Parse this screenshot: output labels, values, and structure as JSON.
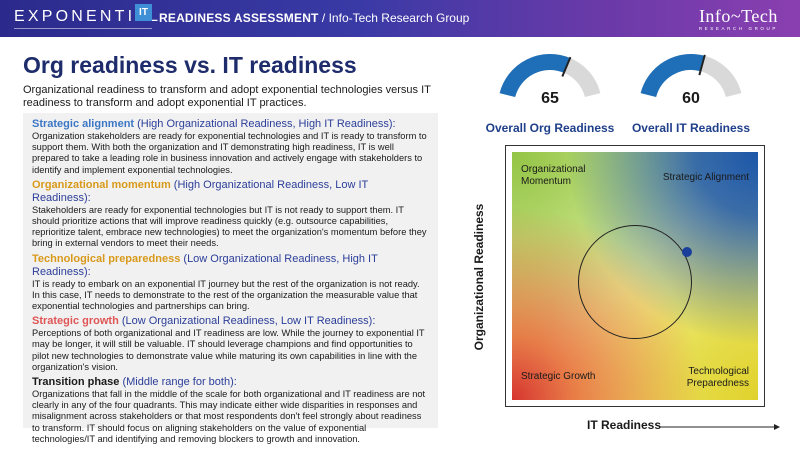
{
  "header": {
    "brand": "EXPONENTIAL",
    "brand_box": "IT",
    "title_bold": "READINESS ASSESSMENT",
    "title_rest": " / Info-Tech Research Group",
    "logo_main": "Info~Tech",
    "logo_sub": "RESEARCH GROUP"
  },
  "page": {
    "title": "Org readiness vs. IT readiness",
    "subtitle": "Organizational readiness to transform and adopt exponential technologies versus IT readiness to transform and adopt exponential IT practices."
  },
  "sections": [
    {
      "heading": "Strategic alignment",
      "paren": " (High Organizational Readiness, High IT Readiness):",
      "body": "Organization stakeholders are ready for exponential technologies and IT is ready to transform to support them. With both the organization and IT demonstrating high readiness, IT is well prepared to take a leading role in business innovation and actively engage with stakeholders to identify and implement exponential technologies."
    },
    {
      "heading": "Organizational momentum",
      "paren": " (High Organizational Readiness, Low IT Readiness):",
      "body": "Stakeholders are ready for exponential technologies but IT is not ready to support them. IT should prioritize actions that will improve readiness quickly (e.g. outsource capabilities, reprioritize talent, embrace new technologies) to meet the organization's momentum before they bring in external vendors to meet their needs."
    },
    {
      "heading": "Technological preparedness",
      "paren": " (Low Organizational Readiness, High IT Readiness):",
      "body": "IT is ready to embark on an exponential IT journey but the rest of the organization is not ready. In this case, IT needs to demonstrate to the rest of the organization the measurable value that exponential technologies and partnerships can bring."
    },
    {
      "heading": "Strategic growth",
      "paren": " (Low Organizational Readiness, Low IT Readiness):",
      "body": "Perceptions of both organizational and IT readiness are low. While the journey to exponential IT may be longer, it will still be valuable. IT should leverage champions and find opportunities to pilot new technologies to demonstrate value while maturing its own capabilities in line with the organization's vision."
    },
    {
      "heading": "Transition phase",
      "paren": " (Middle range for both):",
      "body": "Organizations that fall in the middle of the scale for both organizational and IT readiness are not clearly in any of the four quadrants. This may indicate either wide disparities in responses and misalignment across stakeholders or that most respondents don't feel strongly about readiness to transform. IT should focus on aligning stakeholders on the value of exponential technologies/IT and identifying and removing blockers to growth and innovation."
    }
  ],
  "gauges": [
    {
      "value": "65",
      "fraction": 0.65,
      "label": "Overall Org Readiness"
    },
    {
      "value": "60",
      "fraction": 0.6,
      "label": "Overall IT Readiness"
    }
  ],
  "quadrant": {
    "y_label": "Organizational Readiness",
    "x_label": "IT Readiness",
    "top_left": [
      "Organizational",
      "Momentum"
    ],
    "top_right": "Strategic Alignment",
    "bottom_left": "Strategic Growth",
    "bottom_right": [
      "Technological",
      "Preparedness"
    ],
    "point_it_readiness": 60,
    "point_org_readiness": 65
  },
  "colors": {
    "header_start": "#2b2a8c",
    "header_end": "#8a3fb0",
    "gauge_fill": "#1e6fb8",
    "gauge_track": "#d9d9d9",
    "title": "#1f2c6b",
    "accent_blue": "#3b77c4",
    "accent_gold": "#d99a1a",
    "accent_red": "#e05555"
  }
}
